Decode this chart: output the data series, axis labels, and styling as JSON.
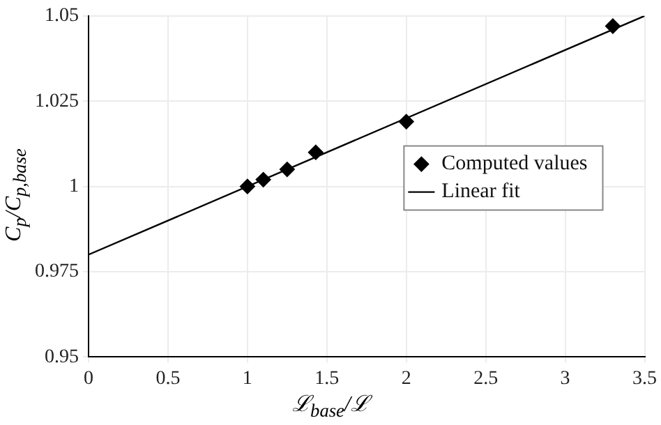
{
  "chart_data": {
    "type": "scatter",
    "xlabel": "ℒ$_{base}$/ℒ",
    "ylabel": "C$_{p}$/C$_{p,base}$",
    "xlim": [
      0,
      3.5
    ],
    "ylim": [
      0.95,
      1.05
    ],
    "xticks": [
      0,
      0.5,
      1,
      1.5,
      2,
      2.5,
      3,
      3.5
    ],
    "yticks": [
      0.95,
      0.975,
      1,
      1.025,
      1.05
    ],
    "grid": true,
    "legend": "right",
    "series": [
      {
        "name": "Computed values",
        "type": "scatter",
        "marker": "diamond",
        "color": "#000000",
        "x": [
          1,
          1.1,
          1.25,
          1.43,
          2,
          3.3
        ],
        "values": [
          1,
          1.002,
          1.005,
          1.01,
          1.019,
          1.047
        ]
      },
      {
        "name": "Linear fit",
        "type": "line",
        "marker": "none",
        "line_style": "solid",
        "color": "#000000",
        "x": [
          0,
          3.5
        ],
        "values": [
          0.98,
          1.05
        ]
      }
    ]
  }
}
